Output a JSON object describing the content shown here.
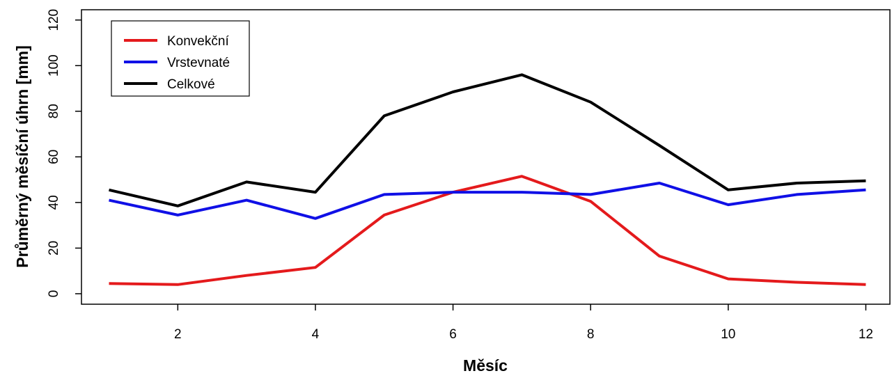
{
  "chart_data": {
    "type": "line",
    "xlabel": "Měsíc",
    "ylabel": "Průměrný měsíční úhrn [mm]",
    "x": [
      1,
      2,
      3,
      4,
      5,
      6,
      7,
      8,
      9,
      10,
      11,
      12
    ],
    "xlim": [
      0.6,
      12.35
    ],
    "ylim": [
      -4.6,
      124.5
    ],
    "xticks": [
      2,
      4,
      6,
      8,
      10,
      12
    ],
    "yticks": [
      0,
      20,
      40,
      60,
      80,
      100,
      120
    ],
    "grid": false,
    "legend_position": "top-left",
    "series": [
      {
        "name": "Konvekční",
        "color": "#e41a1c",
        "values": [
          4.5,
          4.0,
          8.0,
          11.5,
          34.5,
          44.5,
          51.5,
          40.5,
          16.5,
          6.5,
          5.0,
          4.0
        ]
      },
      {
        "name": "Vrstevnaté",
        "color": "#1010e6",
        "values": [
          41.0,
          34.5,
          41.0,
          33.0,
          43.5,
          44.5,
          44.5,
          43.5,
          48.5,
          39.0,
          43.5,
          45.5
        ]
      },
      {
        "name": "Celkové",
        "color": "#000000",
        "values": [
          45.5,
          38.5,
          49.0,
          44.5,
          78.0,
          88.5,
          96.0,
          84.0,
          65.0,
          45.5,
          48.5,
          49.5
        ]
      }
    ]
  }
}
